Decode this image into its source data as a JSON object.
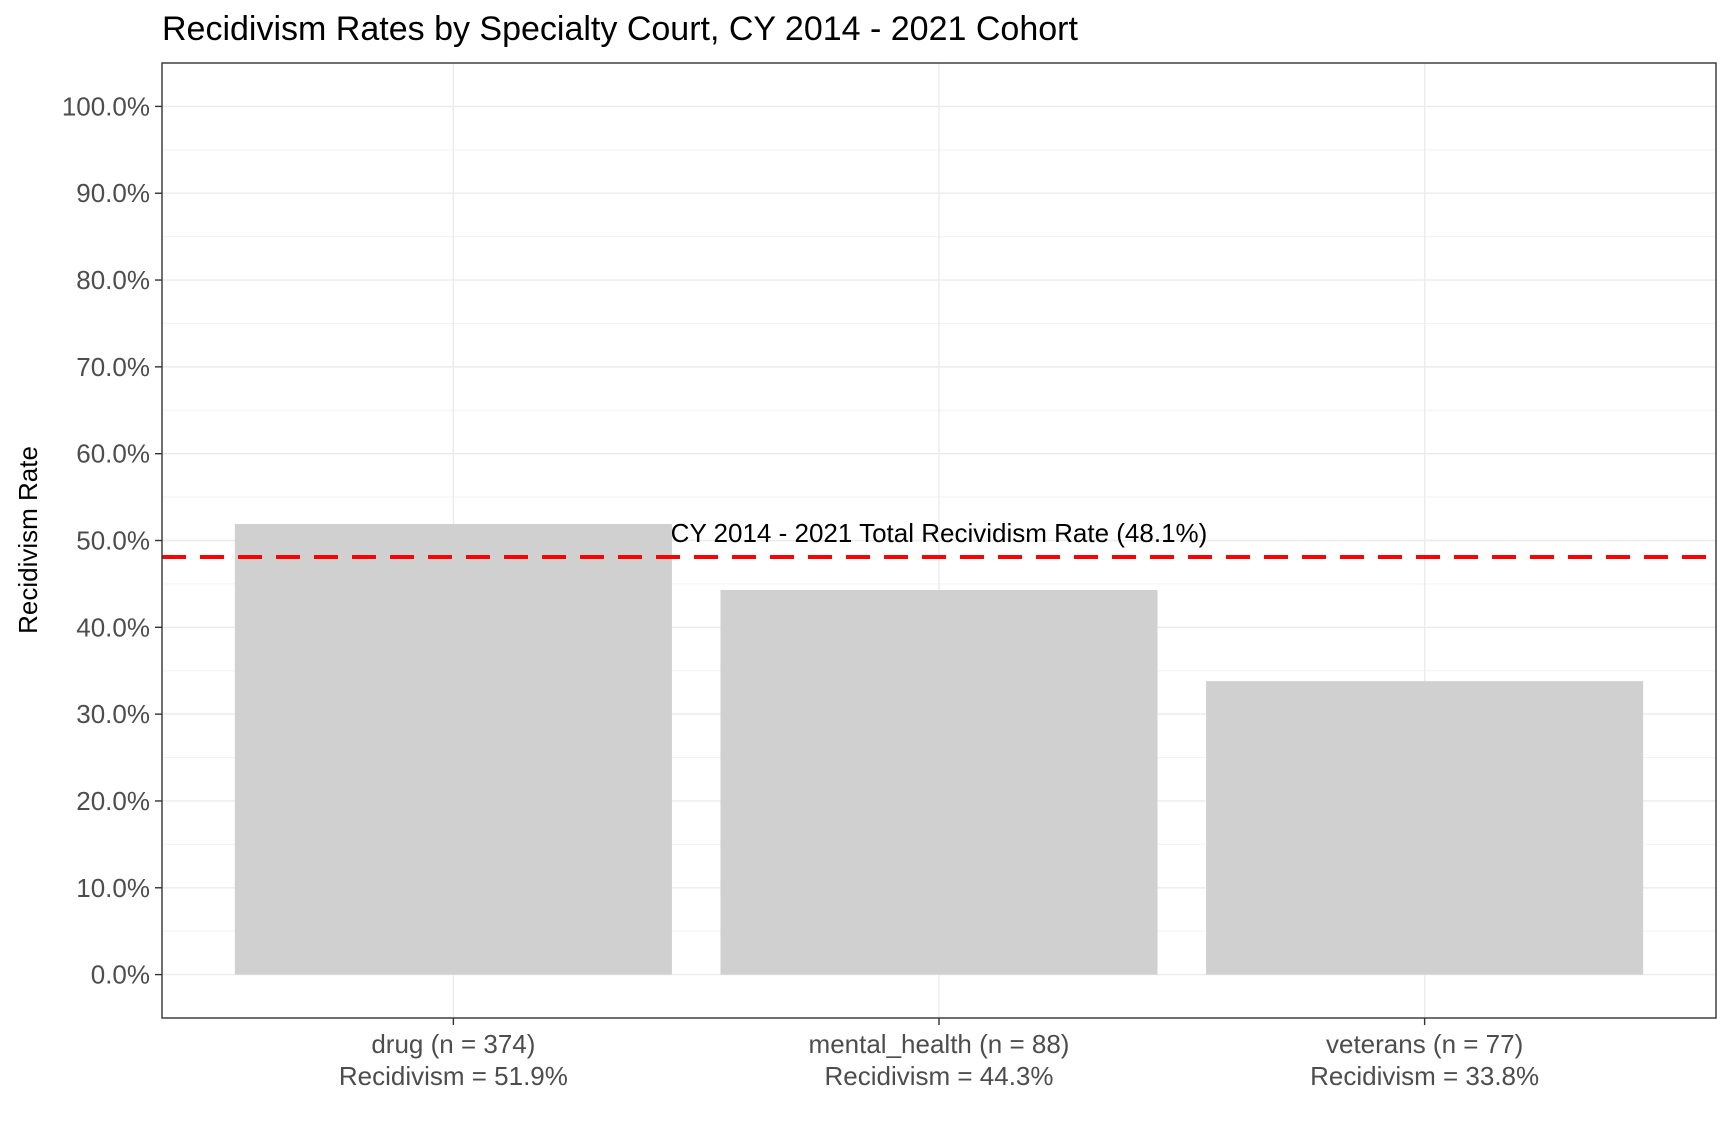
{
  "chart_data": {
    "type": "bar",
    "title": "Recidivism Rates by Specialty Court, CY 2014 - 2021 Cohort",
    "ylabel": "Recidivism Rate",
    "xlabel": "",
    "categories": [
      [
        "drug (n = 374)",
        "Recidivism = 51.9%"
      ],
      [
        "mental_health (n = 88)",
        "Recidivism = 44.3%"
      ],
      [
        "veterans (n = 77)",
        "Recidivism = 33.8%"
      ]
    ],
    "values": [
      51.9,
      44.3,
      33.8
    ],
    "ylim": [
      -5,
      105
    ],
    "yticks": [
      0,
      10,
      20,
      30,
      40,
      50,
      60,
      70,
      80,
      90,
      100
    ],
    "ytick_labels": [
      "0.0%",
      "10.0%",
      "20.0%",
      "30.0%",
      "40.0%",
      "50.0%",
      "60.0%",
      "70.0%",
      "80.0%",
      "90.0%",
      "100.0%"
    ],
    "reference_line": {
      "value": 48.1,
      "label": "CY 2014 - 2021 Total Recividism Rate (48.1%)",
      "color": "#ff0000",
      "style": "dashed"
    },
    "bar_color": "#d0d0d0",
    "grid": true,
    "legend": "none"
  }
}
